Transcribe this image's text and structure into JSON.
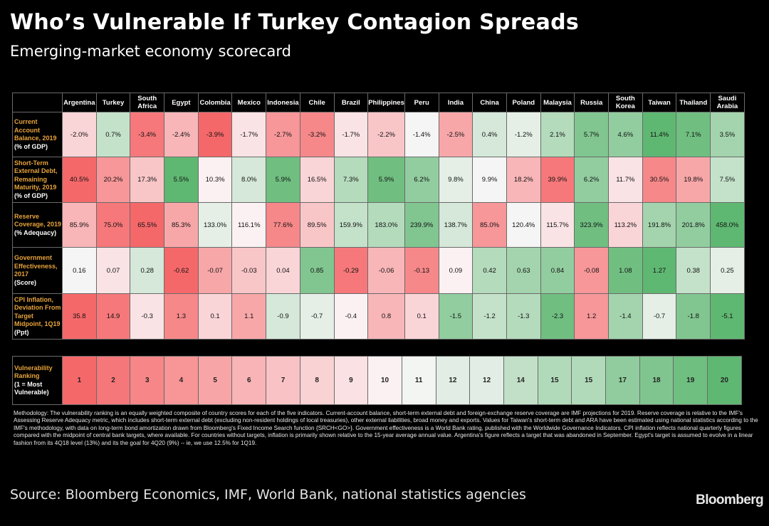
{
  "header": {
    "title": "Who’s Vulnerable If Turkey Contagion Spreads",
    "subtitle": "Emerging-market economy scorecard"
  },
  "chart_data": {
    "type": "heatmap",
    "title": "Who’s Vulnerable If Turkey Contagion Spreads",
    "subtitle": "Emerging-market economy scorecard",
    "columns": [
      "Argentina",
      "Turkey",
      "South Africa",
      "Egypt",
      "Colombia",
      "Mexico",
      "Indonesia",
      "Chile",
      "Brazil",
      "Philippines",
      "Peru",
      "India",
      "China",
      "Poland",
      "Malaysia",
      "Russia",
      "South Korea",
      "Taiwan",
      "Thailand",
      "Saudi Arabia"
    ],
    "rows": [
      {
        "label": "Current Account Balance, 2019",
        "unit": "(% of GDP)",
        "display": [
          "-2.0%",
          "0.7%",
          "-3.4%",
          "-2.4%",
          "-3.9%",
          "-1.7%",
          "-2.7%",
          "-3.2%",
          "-1.7%",
          "-2.2%",
          "-1.4%",
          "-2.5%",
          "0.4%",
          "-1.2%",
          "2.1%",
          "5.7%",
          "4.6%",
          "11.4%",
          "7.1%",
          "3.5%"
        ],
        "values": [
          -2.0,
          0.7,
          -3.4,
          -2.4,
          -3.9,
          -1.7,
          -2.7,
          -3.2,
          -1.7,
          -2.2,
          -1.4,
          -2.5,
          0.4,
          -1.2,
          2.1,
          5.7,
          4.6,
          11.4,
          7.1,
          3.5
        ],
        "higher_is_better": true
      },
      {
        "label": "Short-Term External Debt, Remaining Maturity, 2019",
        "unit": "(% of GDP)",
        "display": [
          "40.5%",
          "20.2%",
          "17.3%",
          "5.5%",
          "10.3%",
          "8.0%",
          "5.9%",
          "16.5%",
          "7.3%",
          "5.9%",
          "6.2%",
          "9.8%",
          "9.9%",
          "18.2%",
          "39.9%",
          "6.2%",
          "11.7%",
          "30.5%",
          "19.8%",
          "7.5%"
        ],
        "values": [
          40.5,
          20.2,
          17.3,
          5.5,
          10.3,
          8.0,
          5.9,
          16.5,
          7.3,
          5.9,
          6.2,
          9.8,
          9.9,
          18.2,
          39.9,
          6.2,
          11.7,
          30.5,
          19.8,
          7.5
        ],
        "higher_is_better": false
      },
      {
        "label": "Reserve Coverage, 2019",
        "unit": "(% Adequacy)",
        "display": [
          "85.9%",
          "75.0%",
          "65.5%",
          "85.3%",
          "133.0%",
          "116.1%",
          "77.6%",
          "89.5%",
          "159.9%",
          "183.0%",
          "239.9%",
          "138.7%",
          "85.0%",
          "120.4%",
          "115.7%",
          "323.9%",
          "113.2%",
          "191.8%",
          "201.8%",
          "458.0%"
        ],
        "values": [
          85.9,
          75.0,
          65.5,
          85.3,
          133.0,
          116.1,
          77.6,
          89.5,
          159.9,
          183.0,
          239.9,
          138.7,
          85.0,
          120.4,
          115.7,
          323.9,
          113.2,
          191.8,
          201.8,
          458.0
        ],
        "higher_is_better": true
      },
      {
        "label": "Government Effectiveness, 2017",
        "unit": "(Score)",
        "display": [
          "0.16",
          "0.07",
          "0.28",
          "-0.62",
          "-0.07",
          "-0.03",
          "0.04",
          "0.85",
          "-0.29",
          "-0.06",
          "-0.13",
          "0.09",
          "0.42",
          "0.63",
          "0.84",
          "-0.08",
          "1.08",
          "1.27",
          "0.38",
          "0.25"
        ],
        "values": [
          0.16,
          0.07,
          0.28,
          -0.62,
          -0.07,
          -0.03,
          0.04,
          0.85,
          -0.29,
          -0.06,
          -0.13,
          0.09,
          0.42,
          0.63,
          0.84,
          -0.08,
          1.08,
          1.27,
          0.38,
          0.25
        ],
        "higher_is_better": true
      },
      {
        "label": "CPI Inflation, Deviation From Target Midpoint, 1Q19",
        "unit": "(Ppt)",
        "display": [
          "35.8",
          "14.9",
          "-0.3",
          "1.3",
          "0.1",
          "1.1",
          "-0.9",
          "-0.7",
          "-0.4",
          "0.8",
          "0.1",
          "-1.5",
          "-1.2",
          "-1.3",
          "-2.3",
          "1.2",
          "-1.4",
          "-0.7",
          "-1.8",
          "-5.1"
        ],
        "values": [
          35.8,
          14.9,
          -0.3,
          1.3,
          0.1,
          1.1,
          -0.9,
          -0.7,
          -0.4,
          0.8,
          0.1,
          -1.5,
          -1.2,
          -1.3,
          -2.3,
          1.2,
          -1.4,
          -0.7,
          -1.8,
          -5.1
        ],
        "higher_is_better": false
      }
    ],
    "ranking": {
      "label": "Vulnerability Ranking",
      "unit": "(1 = Most Vulnerable)",
      "values": [
        1,
        2,
        3,
        4,
        5,
        6,
        7,
        8,
        9,
        10,
        11,
        12,
        12,
        14,
        15,
        15,
        17,
        18,
        19,
        20
      ]
    },
    "colors": {
      "worst": "#f5686a",
      "neutral": "#fbf8fa",
      "best": "#5fb872",
      "label_text": "#e8a33a"
    }
  },
  "footer": {
    "methodology": "Methodology: The vulnerability ranking is an equally weighted composite of country scores for each of the five indicators. Current-account balance, short-term external debt and foreign-exchange reserve coverage are IMF projections for 2019. Reserve coverage is relative to the IMF's Assessing Reserve Adequacy metric, which includes short-term external debt (excluding non-resident holdings of local treasuries), other external liabilities, broad money and exports. Values for Taiwan's short-term debt and ARA have been estimated using national statistics according to the IMF's methodology, with data on long-term bond amortization drawn from Bloomberg's Fixed Income Search function {SRCH<GO>}. Government effectiveness is a World Bank rating, published with the Worldwide Governance Indicators. CPI inflation reflects national quarterly figures compared with the midpoint of central bank targets, where available. For countries without targets, inflation is primarily shown relative to the 15-year average annual value. Argentina's figure reflects a target that was abandoned in September. Egypt's target is assumed to evolve in a linear fashion from its 4Q18 level (13%) and its the goal for 4Q20 (9%) -- ie, we use 12.5% for 1Q19.",
    "source": "Source: Bloomberg Economics, IMF, World Bank, national statistics agencies",
    "logo": "Bloomberg"
  }
}
